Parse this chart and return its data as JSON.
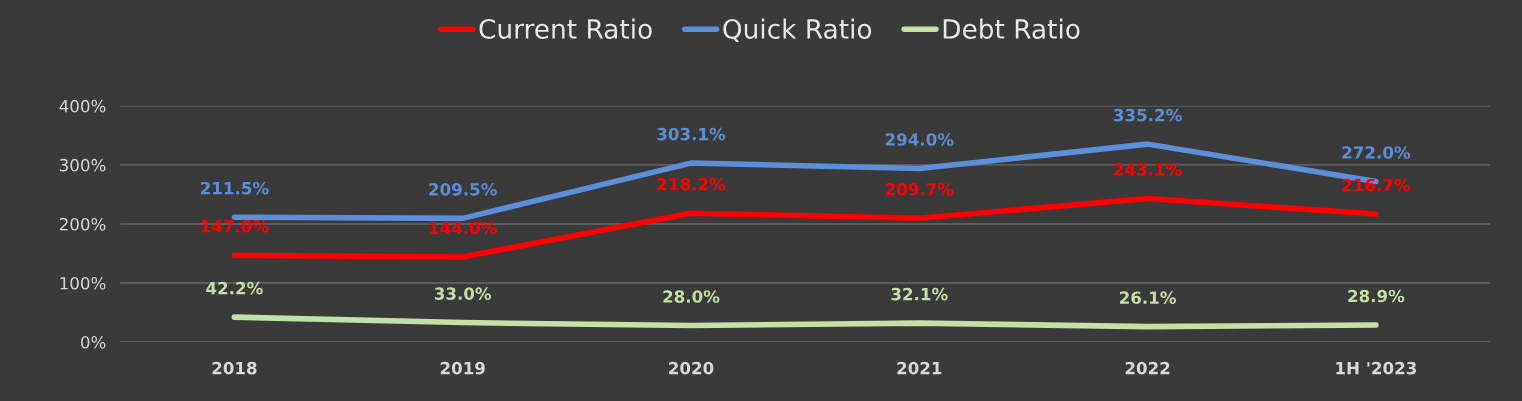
{
  "chart_data": {
    "type": "line",
    "categories": [
      "2018",
      "2019",
      "2020",
      "2021",
      "2022",
      "1H '2023"
    ],
    "series": [
      {
        "name": "Current Ratio",
        "color": "#ff0000",
        "values": [
          147.0,
          144.0,
          218.2,
          209.7,
          243.1,
          216.7
        ],
        "value_labels": [
          "147.0%",
          "144.0%",
          "218.2%",
          "209.7%",
          "243.1%",
          "216.7%"
        ]
      },
      {
        "name": "Quick Ratio",
        "color": "#5b8fd9",
        "values": [
          211.5,
          209.5,
          303.1,
          294.0,
          335.2,
          272.0
        ],
        "value_labels": [
          "211.5%",
          "209.5%",
          "303.1%",
          "294.0%",
          "335.2%",
          "272.0%"
        ]
      },
      {
        "name": "Debt Ratio",
        "color": "#c5e0a5",
        "values": [
          42.2,
          33.0,
          28.0,
          32.1,
          26.1,
          28.9
        ],
        "value_labels": [
          "42.2%",
          "33.0%",
          "28.0%",
          "32.1%",
          "26.1%",
          "28.9%"
        ]
      }
    ],
    "ylim": [
      0,
      400
    ],
    "yticks": [
      {
        "value": 0,
        "label": "0%"
      },
      {
        "value": 100,
        "label": "100%"
      },
      {
        "value": 200,
        "label": "200%"
      },
      {
        "value": 300,
        "label": "300%"
      },
      {
        "value": 400,
        "label": "400%"
      }
    ],
    "grid": "y",
    "legend": "top",
    "marker": "none",
    "line_style": "solid"
  }
}
